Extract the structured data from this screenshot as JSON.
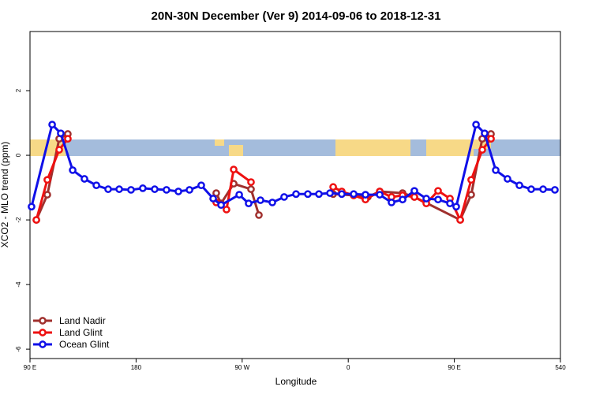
{
  "chart_data": {
    "type": "line",
    "title": "20N-30N December (Ver 9)   2014-09-06 to 2018-12-31",
    "x_label": "Longitude",
    "y_label": "XCO2 - MLO trend (ppm)",
    "xlim": [
      90,
      540
    ],
    "ylim": [
      -6.29,
      3.83
    ],
    "xticks": [
      {
        "value": 90,
        "label": "90 E"
      },
      180,
      {
        "value": 270,
        "label": "90 W"
      },
      {
        "value": 360,
        "label": "0"
      },
      {
        "value": 450,
        "label": "90 E"
      },
      540
    ],
    "yticks": [
      -6,
      -4,
      -2,
      0,
      2
    ],
    "legend": "bottom-left",
    "series": [
      {
        "name": "Land Nadir",
        "color": "#a0302e",
        "x": [
          95.4,
          104.7,
          114.8,
          122.1,
          null,
          248,
          252.1,
          262.8,
          277.5,
          284.2,
          null,
          347.2,
          364.6,
          376.6,
          386.7,
          406.1,
          416.1,
          455,
          464.3,
          473.7,
          481.1
        ],
        "values": [
          -2.0,
          -1.22,
          0.51,
          0.66,
          null,
          -1.17,
          -1.49,
          -0.88,
          -1.05,
          -1.85,
          null,
          -1.2,
          -1.24,
          -1.29,
          -1.12,
          -1.17,
          -1.29,
          -2.0,
          -1.22,
          0.51,
          0.66
        ]
      },
      {
        "name": "Land Glint",
        "color": "#ee1111",
        "x": [
          95.4,
          104.7,
          114.8,
          122.1,
          null,
          248,
          256.7,
          262.8,
          277.5,
          null,
          347.2,
          354.5,
          364.6,
          374.6,
          386.7,
          396.7,
          406.1,
          416.1,
          426.2,
          436.2,
          446.3,
          455,
          464.3,
          473.7,
          481.1
        ],
        "values": [
          -2.0,
          -0.76,
          0.17,
          0.51,
          null,
          -1.46,
          -1.68,
          -0.44,
          -0.83,
          null,
          -0.98,
          -1.12,
          -1.24,
          -1.37,
          -1.12,
          -1.29,
          -1.24,
          -1.29,
          -1.49,
          -1.1,
          -1.34,
          -2.0,
          -0.76,
          0.17,
          0.51
        ]
      },
      {
        "name": "Ocean Glint",
        "color": "#1010e8",
        "x": [
          91.3,
          108.8,
          116.1,
          126.2,
          136.2,
          146.3,
          156.3,
          165.7,
          175.7,
          185.7,
          195.8,
          205.8,
          215.9,
          225.3,
          235.3,
          245.4,
          252.1,
          267.5,
          275.5,
          285.5,
          295.6,
          305.6,
          315.7,
          325.7,
          335.1,
          344.5,
          354.5,
          364.6,
          374.6,
          386.7,
          396.7,
          406.1,
          416.1,
          426.2,
          436.2,
          446.3,
          451.6,
          468.4,
          475.7,
          485.1,
          495.1,
          505.2,
          515.2,
          525.3,
          535.3
        ],
        "values": [
          -1.59,
          0.95,
          0.68,
          -0.46,
          -0.73,
          -0.93,
          -1.05,
          -1.05,
          -1.07,
          -1.02,
          -1.05,
          -1.07,
          -1.12,
          -1.07,
          -0.93,
          -1.34,
          -1.54,
          -1.22,
          -1.49,
          -1.39,
          -1.46,
          -1.29,
          -1.2,
          -1.2,
          -1.2,
          -1.17,
          -1.2,
          -1.2,
          -1.22,
          -1.22,
          -1.46,
          -1.37,
          -1.1,
          -1.34,
          -1.37,
          -1.49,
          -1.59,
          0.95,
          0.68,
          -0.46,
          -0.73,
          -0.93,
          -1.05,
          -1.05,
          -1.07
        ]
      }
    ]
  }
}
